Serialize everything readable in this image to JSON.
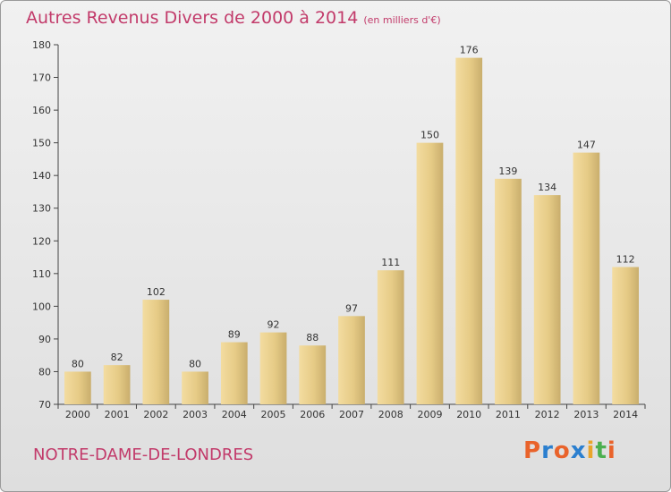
{
  "header": {
    "title": "Autres Revenus Divers de 2000 à 2014",
    "subtitle": "(en milliers d'€)"
  },
  "footer": {
    "commune": "NOTRE-DAME-DE-LONDRES",
    "brand": "Proxiti"
  },
  "colors": {
    "title": "#c23a6a",
    "bar_light": "#f5dfa0",
    "bar_dark": "#c8ac6a",
    "brand_letters": [
      "#e9632b",
      "#2b7fcf",
      "#e9632b",
      "#2b7fcf",
      "#e9a52b",
      "#4caf50",
      "#e9632b"
    ]
  },
  "chart_data": {
    "type": "bar",
    "title": "Autres Revenus Divers de 2000 à 2014",
    "subtitle": "(en milliers d'€)",
    "xlabel": "",
    "ylabel": "",
    "categories": [
      "2000",
      "2001",
      "2002",
      "2003",
      "2004",
      "2005",
      "2006",
      "2007",
      "2008",
      "2009",
      "2010",
      "2011",
      "2012",
      "2013",
      "2014"
    ],
    "values": [
      80,
      82,
      102,
      80,
      89,
      92,
      88,
      97,
      111,
      150,
      176,
      139,
      134,
      147,
      112
    ],
    "ylim": [
      70,
      180
    ],
    "yticks": [
      70,
      80,
      90,
      100,
      110,
      120,
      130,
      140,
      150,
      160,
      170,
      180
    ],
    "grid": false,
    "legend": "none"
  }
}
